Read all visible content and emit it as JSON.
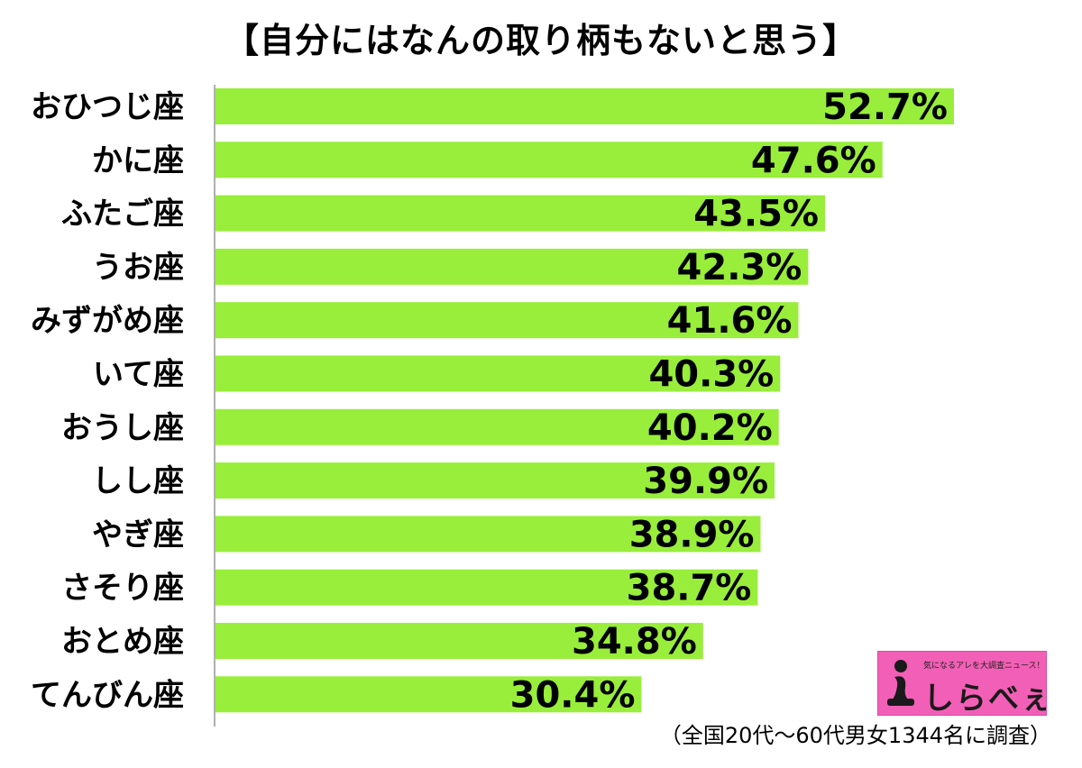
{
  "title": "【自分にはなんの取り柄もないと思う】",
  "footnote": "（全国20代～60代男女1344名に調査）",
  "logo": {
    "tagline": "気になるアレを大調査ニュース！",
    "name": "しらべぇ"
  },
  "colors": {
    "bar": "#98ee3a",
    "axis": "#b0b0b0",
    "text": "#000000",
    "logo_bg": "#f25fb6"
  },
  "chart_data": {
    "type": "bar",
    "orientation": "horizontal",
    "title": "【自分にはなんの取り柄もないと思う】",
    "categories": [
      "おひつじ座",
      "かに座",
      "ふたご座",
      "うお座",
      "みずがめ座",
      "いて座",
      "おうし座",
      "しし座",
      "やぎ座",
      "さそり座",
      "おとめ座",
      "てんびん座"
    ],
    "values": [
      52.7,
      47.6,
      43.5,
      42.3,
      41.6,
      40.3,
      40.2,
      39.9,
      38.9,
      38.7,
      34.8,
      30.4
    ],
    "value_labels": [
      "52.7%",
      "47.6%",
      "43.5%",
      "42.3%",
      "41.6%",
      "40.3%",
      "40.2%",
      "39.9%",
      "38.9%",
      "38.7%",
      "34.8%",
      "30.4%"
    ],
    "unit": "%",
    "xlim": [
      0,
      100
    ],
    "grid": false,
    "legend": "none"
  }
}
